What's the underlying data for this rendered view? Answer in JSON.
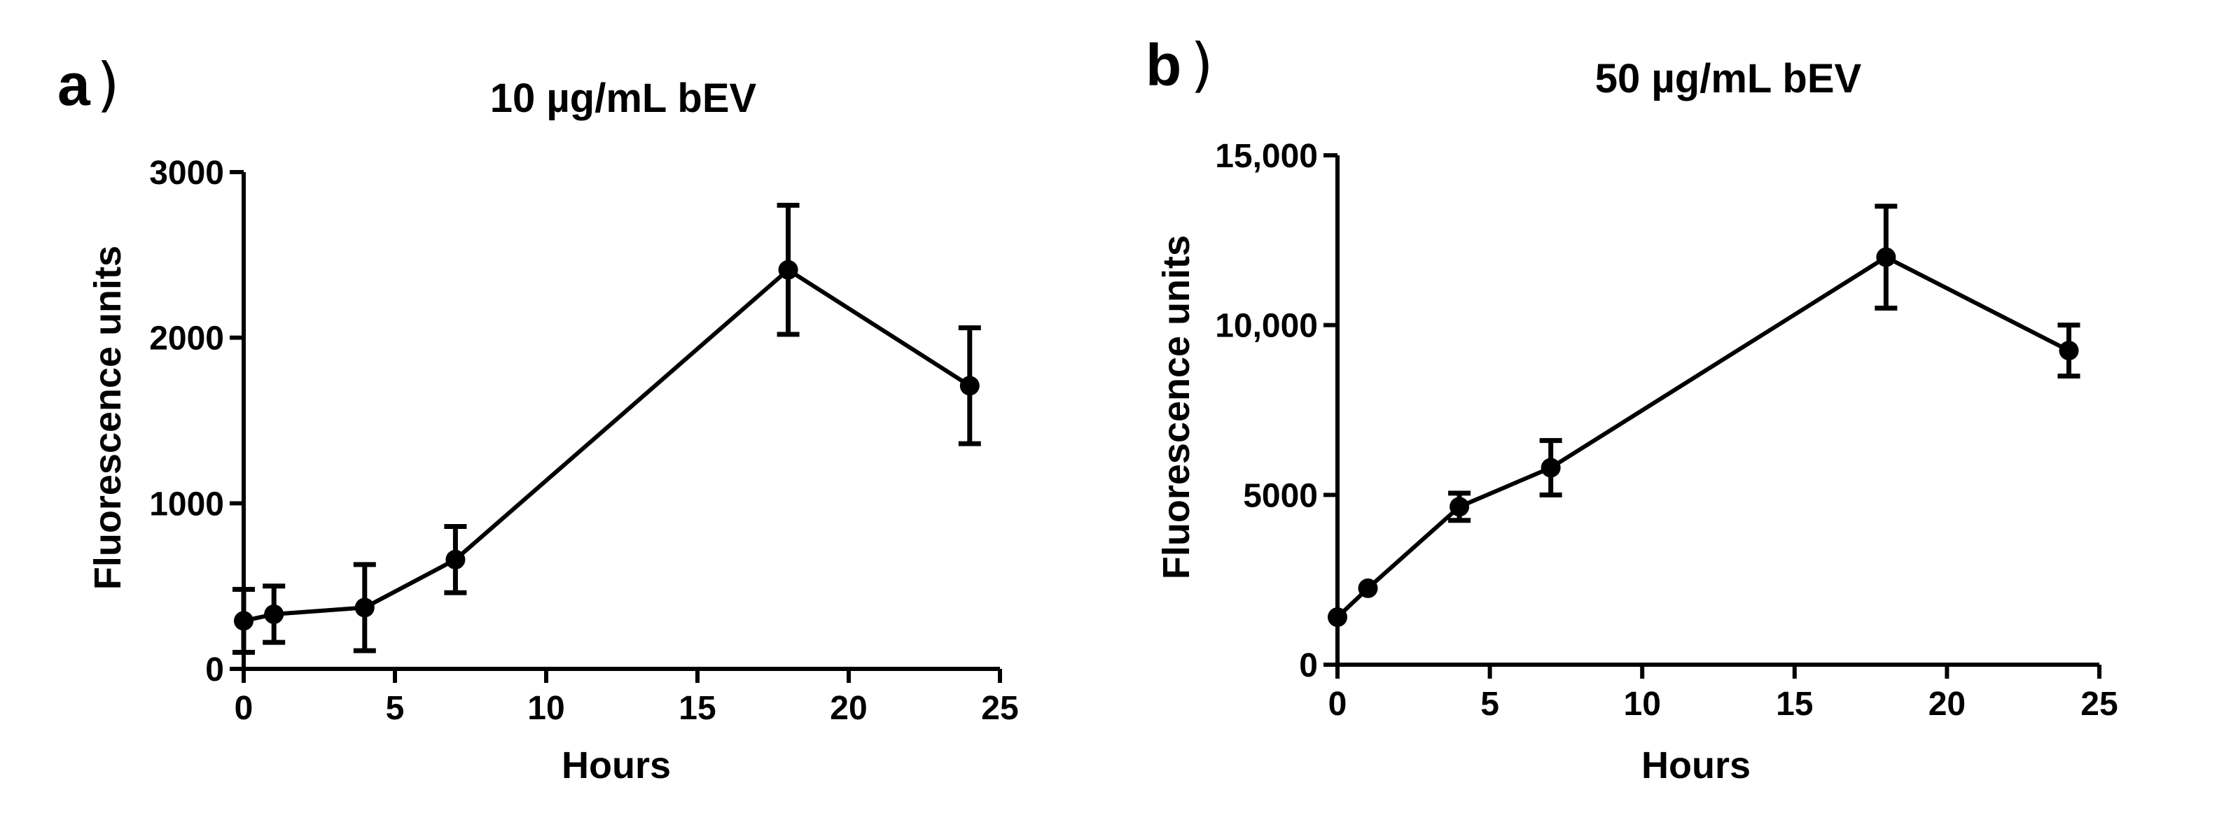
{
  "figure": {
    "panels": [
      {
        "letter": "a",
        "paren": ")"
      },
      {
        "letter": "b",
        "paren": ")"
      }
    ]
  },
  "chart_data": [
    {
      "type": "line",
      "title": "10 µg/mL bEV",
      "xlabel": "Hours",
      "ylabel": "Fluorescence units",
      "xlim": [
        0,
        25
      ],
      "ylim": [
        0,
        3000
      ],
      "xticks": [
        0,
        5,
        10,
        15,
        20,
        25
      ],
      "xtick_labels": [
        "0",
        "5",
        "10",
        "15",
        "20",
        "25"
      ],
      "yticks": [
        0,
        1000,
        2000,
        3000
      ],
      "ytick_labels": [
        "0",
        "1000",
        "2000",
        "3000"
      ],
      "grid": false,
      "series": [
        {
          "name": "10 µg/mL bEV",
          "x": [
            0,
            1,
            4,
            7,
            18,
            24
          ],
          "y": [
            290,
            330,
            370,
            660,
            2410,
            1710
          ],
          "error": [
            190,
            170,
            260,
            200,
            390,
            350
          ]
        }
      ]
    },
    {
      "type": "line",
      "title": "50 µg/mL bEV",
      "xlabel": "Hours",
      "ylabel": "Fluorescence units",
      "xlim": [
        0,
        25
      ],
      "ylim": [
        0,
        15000
      ],
      "xticks": [
        0,
        5,
        10,
        15,
        20,
        25
      ],
      "xtick_labels": [
        "0",
        "5",
        "10",
        "15",
        "20",
        "25"
      ],
      "yticks": [
        0,
        5000,
        10000,
        15000
      ],
      "ytick_labels": [
        "0",
        "5000",
        "10,000",
        "15,000"
      ],
      "grid": false,
      "series": [
        {
          "name": "50 µg/mL bEV",
          "x": [
            0,
            1,
            4,
            7,
            18,
            24
          ],
          "y": [
            1400,
            2250,
            4650,
            5800,
            12000,
            9250
          ],
          "error": [
            0,
            0,
            400,
            800,
            1500,
            750
          ]
        }
      ]
    }
  ]
}
